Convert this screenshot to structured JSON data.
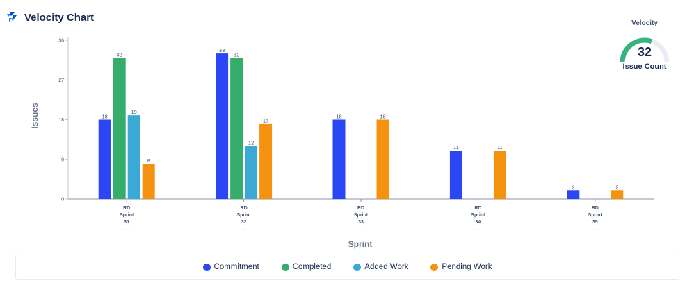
{
  "header": {
    "title": "Velocity Chart",
    "logo_icon": "velocity-logo-icon"
  },
  "gauge": {
    "label": "Velocity",
    "value": "32",
    "sublabel": "Issue Count",
    "fill_fraction": 0.6,
    "color": "#36b37e",
    "track_color": "#ebecf5"
  },
  "chart_data": {
    "type": "bar",
    "title": "",
    "xlabel": "Sprint",
    "ylabel": "Issues",
    "ylim": [
      0,
      36
    ],
    "yticks": [
      0,
      9,
      18,
      27,
      36
    ],
    "categories": [
      [
        "RD",
        "Sprint",
        "31",
        "..."
      ],
      [
        "RD",
        "Sprint",
        "32",
        "..."
      ],
      [
        "RD",
        "Sprint",
        "33",
        "..."
      ],
      [
        "RD",
        "Sprint",
        "34",
        "..."
      ],
      [
        "RD",
        "Sprint",
        "35",
        "..."
      ]
    ],
    "series": [
      {
        "name": "Commitment",
        "color": "#2a46f5",
        "values": [
          18,
          33,
          18,
          11,
          2
        ]
      },
      {
        "name": "Completed",
        "color": "#36ae6b",
        "values": [
          32,
          32,
          null,
          null,
          null
        ]
      },
      {
        "name": "Added Work",
        "color": "#3aa9d6",
        "values": [
          19,
          12,
          null,
          null,
          null
        ]
      },
      {
        "name": "Pending Work",
        "color": "#f5920f",
        "values": [
          8,
          17,
          18,
          11,
          2
        ]
      }
    ],
    "legend_position": "bottom"
  }
}
